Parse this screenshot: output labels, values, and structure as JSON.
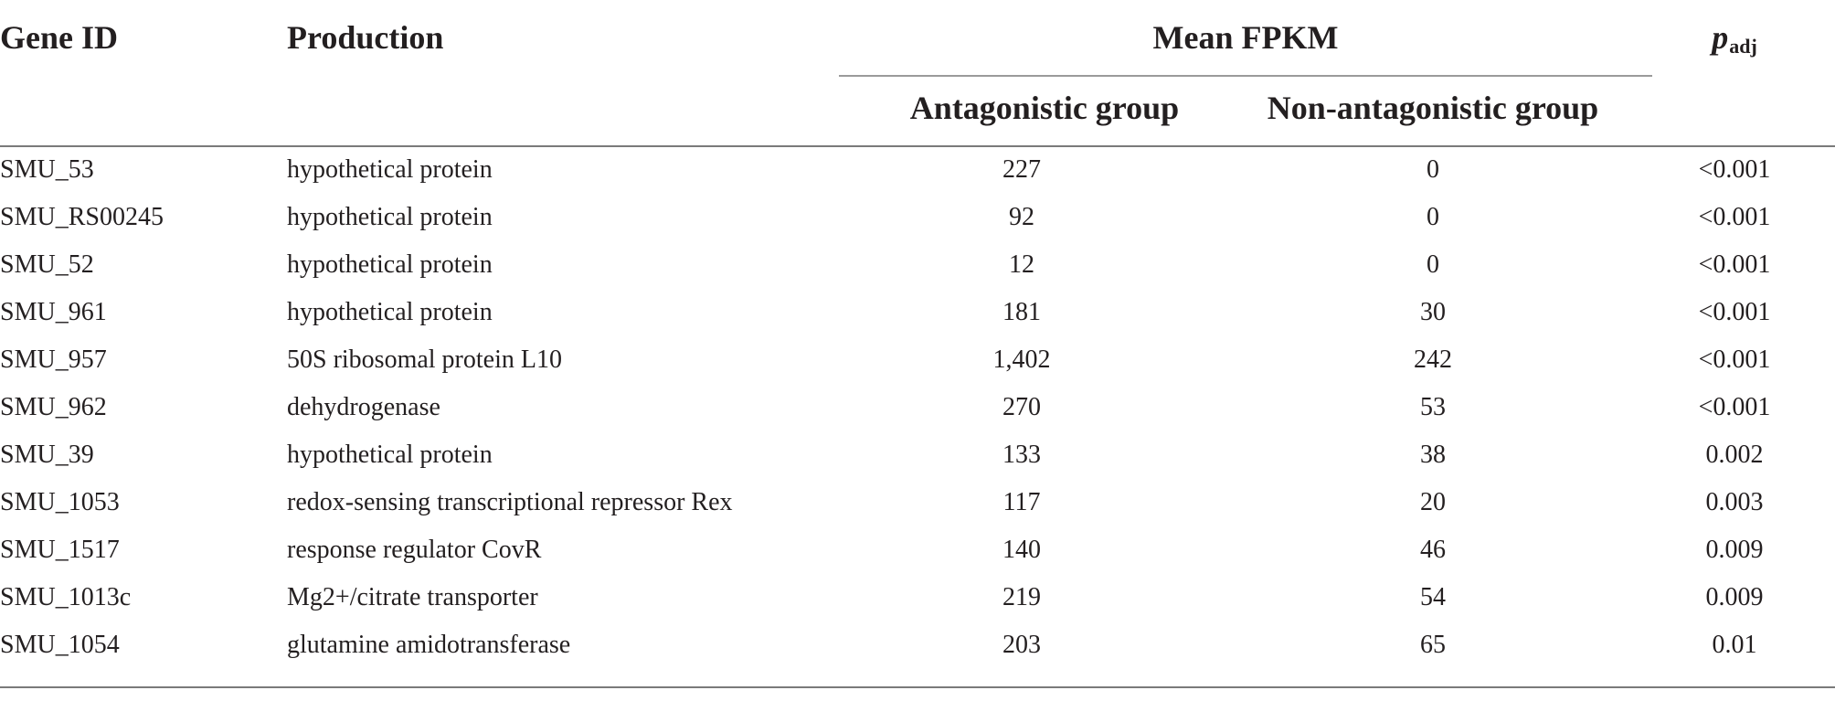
{
  "table": {
    "headers": {
      "gene_id": "Gene ID",
      "production": "Production",
      "mean_fpkm": "Mean FPKM",
      "p_symbol": "p",
      "p_subscript": "adj",
      "antagonistic": "Antagonistic group",
      "non_antagonistic": "Non-antagonistic group"
    },
    "rows": [
      {
        "gene_id": "SMU_53",
        "production": "hypothetical protein",
        "antagonistic": "227",
        "non_antagonistic": "0",
        "p_adj": "<0.001"
      },
      {
        "gene_id": "SMU_RS00245",
        "production": "hypothetical protein",
        "antagonistic": "92",
        "non_antagonistic": "0",
        "p_adj": "<0.001"
      },
      {
        "gene_id": "SMU_52",
        "production": "hypothetical protein",
        "antagonistic": "12",
        "non_antagonistic": "0",
        "p_adj": "<0.001"
      },
      {
        "gene_id": "SMU_961",
        "production": "hypothetical protein",
        "antagonistic": "181",
        "non_antagonistic": "30",
        "p_adj": "<0.001"
      },
      {
        "gene_id": "SMU_957",
        "production": "50S ribosomal protein L10",
        "antagonistic": "1,402",
        "non_antagonistic": "242",
        "p_adj": "<0.001"
      },
      {
        "gene_id": "SMU_962",
        "production": "dehydrogenase",
        "antagonistic": "270",
        "non_antagonistic": "53",
        "p_adj": "<0.001"
      },
      {
        "gene_id": "SMU_39",
        "production": "hypothetical protein",
        "antagonistic": "133",
        "non_antagonistic": "38",
        "p_adj": "0.002"
      },
      {
        "gene_id": "SMU_1053",
        "production": "redox-sensing transcriptional repressor Rex",
        "antagonistic": "117",
        "non_antagonistic": "20",
        "p_adj": "0.003"
      },
      {
        "gene_id": "SMU_1517",
        "production": "response regulator CovR",
        "antagonistic": "140",
        "non_antagonistic": "46",
        "p_adj": "0.009"
      },
      {
        "gene_id": "SMU_1013c",
        "production": "Mg2+/citrate transporter",
        "antagonistic": "219",
        "non_antagonistic": "54",
        "p_adj": "0.009"
      },
      {
        "gene_id": "SMU_1054",
        "production": "glutamine amidotransferase",
        "antagonistic": "203",
        "non_antagonistic": "65",
        "p_adj": "0.01"
      }
    ]
  }
}
